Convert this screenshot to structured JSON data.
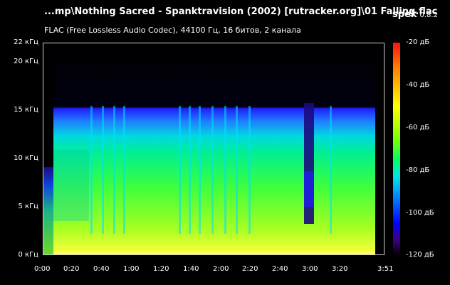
{
  "header": {
    "file_title": "...mp\\Nothing Sacred - Spanktravision (2002) [rutracker.org]\\01 Falling.flac",
    "app_name": "spek",
    "app_version": "0.8.2",
    "subtitle": "FLAC (Free Lossless Audio Codec), 44100 Гц, 16 битов, 2 канала"
  },
  "freq_axis": {
    "labels": [
      "22 кГц",
      "20 кГц",
      "15 кГц",
      "10 кГц",
      "5 кГц",
      "0 кГц"
    ]
  },
  "time_axis": {
    "labels": [
      "0:00",
      "0:20",
      "0:40",
      "1:00",
      "1:20",
      "1:40",
      "2:00",
      "2:20",
      "2:40",
      "3:00",
      "3:20",
      "3:51"
    ]
  },
  "color_scale": {
    "labels": [
      "-20 дБ",
      "-40 дБ",
      "-60 дБ",
      "-80 дБ",
      "-100 дБ",
      "-120 дБ"
    ]
  }
}
